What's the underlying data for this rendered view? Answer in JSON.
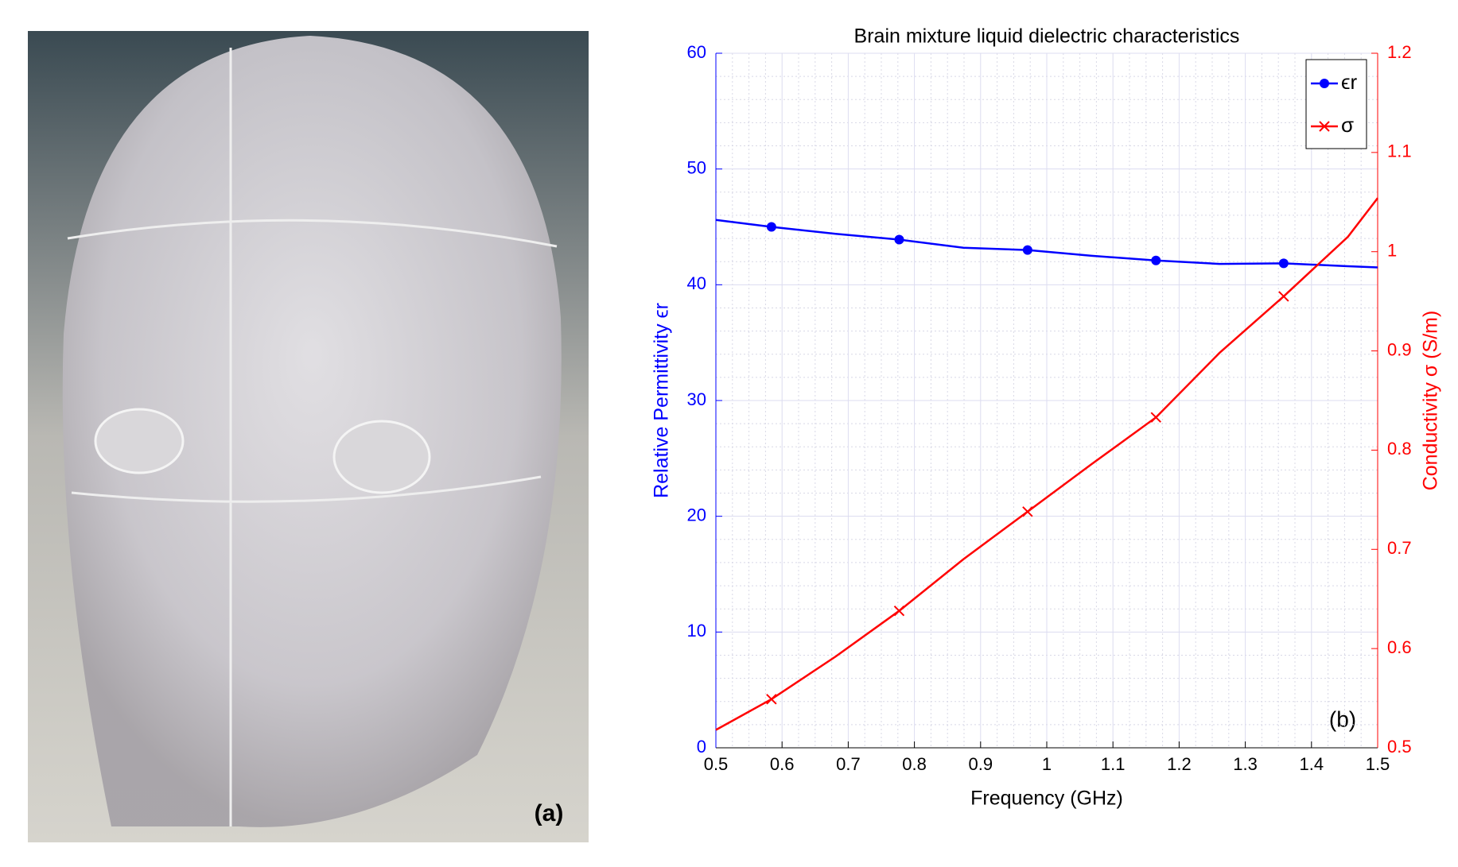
{
  "figure": {
    "photo_label": "(a)"
  },
  "chart_data": {
    "type": "line",
    "title": "Brain mixture liquid dielectric characteristics",
    "x_label": "Frequency (GHz)",
    "y_label": "Relative Permittivity ϵr",
    "y2_label": "Conductivity σ (S/m)",
    "annotation": "(b)",
    "x": [
      0.5,
      0.584,
      0.681,
      0.777,
      0.874,
      0.971,
      1.068,
      1.165,
      1.261,
      1.358,
      1.455,
      1.5
    ],
    "series": [
      {
        "name": "ϵr",
        "color": "#0000ff",
        "marker": "o",
        "marker_indices": [
          1,
          3,
          5,
          7,
          9
        ],
        "values": [
          45.6,
          45.0,
          44.4,
          43.9,
          43.2,
          43.0,
          42.5,
          42.1,
          41.8,
          41.85,
          41.6,
          41.5
        ]
      },
      {
        "name": "σ",
        "color": "#ff0000",
        "marker": "x",
        "axis": "y2",
        "marker_indices": [
          1,
          3,
          5,
          7,
          9
        ],
        "values": [
          0.518,
          0.549,
          0.592,
          0.638,
          0.69,
          0.738,
          0.786,
          0.833,
          0.898,
          0.955,
          1.015,
          1.054
        ]
      }
    ],
    "xlim": [
      0.5,
      1.5
    ],
    "xticks": [
      0.5,
      0.6,
      0.7,
      0.8,
      0.9,
      1,
      1.1,
      1.2,
      1.3,
      1.4,
      1.5
    ],
    "ylim": [
      0,
      60
    ],
    "yticks": [
      0,
      10,
      20,
      30,
      40,
      50,
      60
    ],
    "y2lim": [
      0.5,
      1.2
    ],
    "y2ticks": [
      0.5,
      0.6,
      0.7,
      0.8,
      0.9,
      1,
      1.1,
      1.2
    ],
    "grid": true,
    "minor_grid": true,
    "legend": "top-right"
  }
}
